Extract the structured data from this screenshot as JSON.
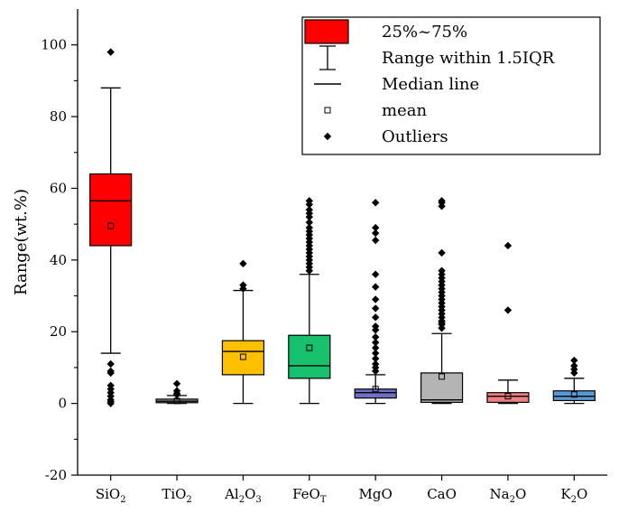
{
  "chart_data": {
    "type": "box",
    "ylabel": "Range(wt.%)",
    "ylim": [
      -20,
      110
    ],
    "yticks": [
      -20,
      0,
      20,
      40,
      60,
      80,
      100
    ],
    "ytick_labels": [
      "-20",
      "0",
      "20",
      "40",
      "60",
      "80",
      "100"
    ],
    "categories": [
      {
        "base": "SiO",
        "sub": "2"
      },
      {
        "base": "TiO",
        "sub": "2"
      },
      {
        "base": "Al",
        "sub": "2",
        "base2": "O",
        "sub2": "3"
      },
      {
        "base": "FeO",
        "sub": "T"
      },
      {
        "base": "MgO"
      },
      {
        "base": "CaO"
      },
      {
        "base": "Na",
        "sub": "2",
        "base2": "O"
      },
      {
        "base": "K",
        "sub": "2",
        "base2": "O"
      }
    ],
    "series": [
      {
        "name": "SiO2",
        "color": "#ff0000",
        "q1": 44,
        "median": 56.5,
        "q3": 64,
        "mean": 49.5,
        "whisker_low": 14,
        "whisker_high": 88,
        "outliers": [
          98,
          11,
          9,
          8.5,
          5,
          4,
          3,
          2,
          1,
          0.5,
          0
        ]
      },
      {
        "name": "TiO2",
        "color": "#9a9a9a",
        "q1": 0.2,
        "median": 0.6,
        "q3": 1.2,
        "mean": 0.7,
        "whisker_low": 0,
        "whisker_high": 2.2,
        "outliers": [
          5.5,
          3.5,
          2.8,
          2.4
        ]
      },
      {
        "name": "Al2O3",
        "color": "#ffc000",
        "q1": 8,
        "median": 14.5,
        "q3": 17.5,
        "mean": 13,
        "whisker_low": 0,
        "whisker_high": 31.5,
        "outliers": [
          39,
          33,
          32
        ]
      },
      {
        "name": "FeOT",
        "color": "#17c06c",
        "q1": 7,
        "median": 10.5,
        "q3": 19,
        "mean": 15.5,
        "whisker_low": 0,
        "whisker_high": 36,
        "outliers": [
          56.5,
          55.5,
          54,
          53,
          52,
          50.5,
          49,
          48,
          47,
          46,
          45,
          44,
          43,
          42,
          41,
          40,
          39,
          38,
          37
        ]
      },
      {
        "name": "MgO",
        "color": "#6f6fc8",
        "q1": 1.5,
        "median": 3,
        "q3": 4,
        "mean": 4,
        "whisker_low": 0,
        "whisker_high": 8,
        "outliers": [
          56,
          49,
          47.5,
          45.5,
          36,
          32.5,
          29,
          26.5,
          24,
          21.5,
          20.5,
          18.5,
          17,
          15.5,
          14,
          12.5,
          11,
          10,
          9
        ]
      },
      {
        "name": "CaO",
        "color": "#b4b4b4",
        "q1": 0.3,
        "median": 1,
        "q3": 8.5,
        "mean": 7.5,
        "whisker_low": 0,
        "whisker_high": 19.5,
        "outliers": [
          56.5,
          56,
          55,
          42,
          37,
          36,
          35,
          34,
          33,
          32,
          31,
          30,
          29,
          28,
          27,
          26,
          25,
          24,
          23,
          22.5,
          22,
          21
        ]
      },
      {
        "name": "Na2O",
        "color": "#f08080",
        "q1": 0.3,
        "median": 2,
        "q3": 3,
        "mean": 2,
        "whisker_low": 0,
        "whisker_high": 6.5,
        "outliers": [
          44,
          26
        ]
      },
      {
        "name": "K2O",
        "color": "#5b9bd5",
        "q1": 0.8,
        "median": 2,
        "q3": 3.5,
        "mean": 2.5,
        "whisker_low": 0,
        "whisker_high": 7,
        "outliers": [
          12,
          10.5,
          9.5,
          8.5
        ]
      }
    ],
    "legend": {
      "position": "top-right",
      "entries": [
        {
          "kind": "box",
          "label": "25%~75%"
        },
        {
          "kind": "whisker",
          "label": "Range within 1.5IQR"
        },
        {
          "kind": "median",
          "label": "Median line"
        },
        {
          "kind": "mean",
          "label": "mean"
        },
        {
          "kind": "outlier",
          "label": "Outliers"
        }
      ]
    }
  }
}
